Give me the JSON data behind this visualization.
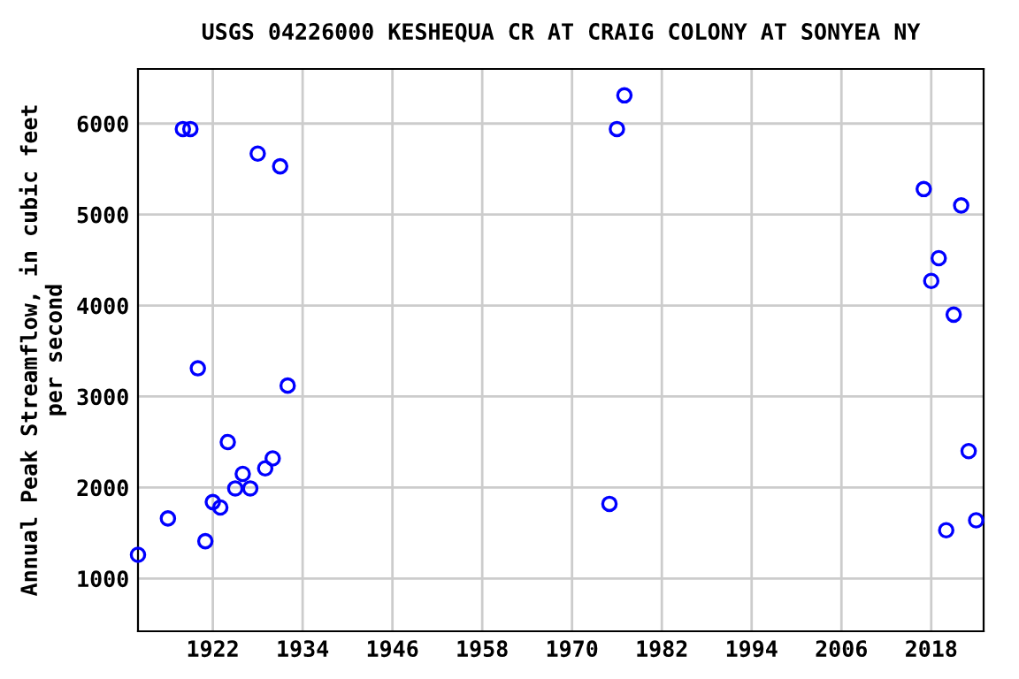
{
  "chart_data": {
    "type": "scatter",
    "title": "USGS 04226000 KESHEQUA CR AT CRAIG COLONY AT SONYEA NY",
    "ylabel": "Annual Peak Streamflow, in cubic feet\nper second",
    "x": [
      1912,
      1916,
      1918,
      1919,
      1920,
      1921,
      1922,
      1923,
      1924,
      1925,
      1926,
      1927,
      1928,
      1929,
      1930,
      1931,
      1932,
      1975,
      1976,
      1977,
      2017,
      2018,
      2019,
      2020,
      2021,
      2022,
      2023,
      2024
    ],
    "series": [
      {
        "color": "#0000ff",
        "values": [
          1260,
          1660,
          5940,
          5940,
          3310,
          1410,
          1840,
          1780,
          2500,
          1990,
          2150,
          1990,
          5670,
          2210,
          2320,
          5530,
          3120,
          1820,
          5940,
          6310,
          5280,
          4270,
          4520,
          1530,
          3900,
          5100,
          2400,
          1640
        ]
      }
    ],
    "xlim": [
      1912,
      2025
    ],
    "xticks": [
      1922,
      1934,
      1946,
      1958,
      1970,
      1982,
      1994,
      2006,
      2018
    ],
    "ylim": [
      420,
      6600
    ],
    "yticks": [
      1000,
      2000,
      3000,
      4000,
      5000,
      6000
    ],
    "grid": true,
    "marker": "circle"
  }
}
